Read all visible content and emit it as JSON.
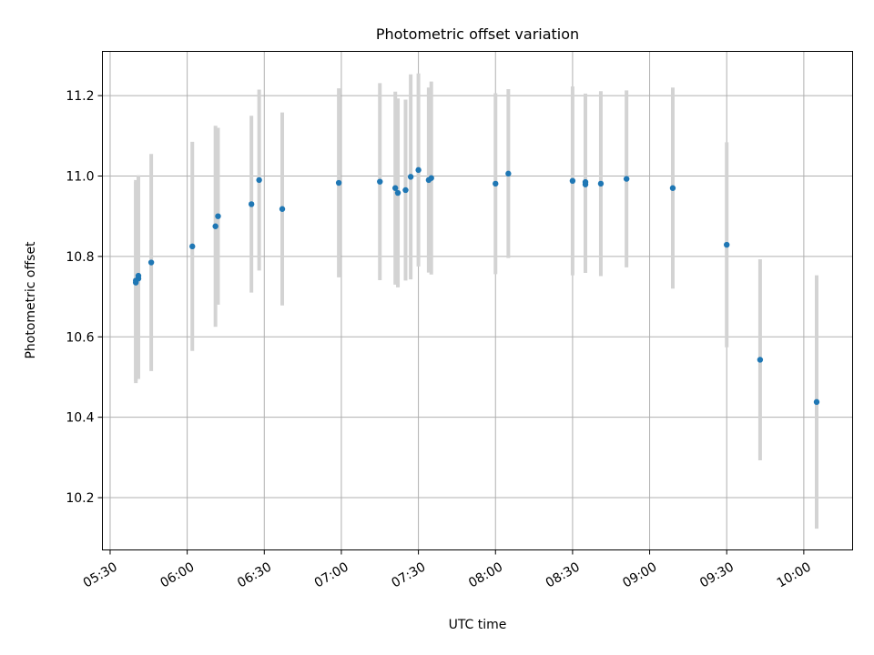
{
  "chart_data": {
    "type": "scatter",
    "title": "Photometric offset variation",
    "xlabel": "UTC time",
    "ylabel": "Photometric offset",
    "xlim": [
      "05:27",
      "10:19"
    ],
    "ylim": [
      10.07,
      11.31
    ],
    "x_ticks": [
      "05:30",
      "06:00",
      "06:30",
      "07:00",
      "07:30",
      "08:00",
      "08:30",
      "09:00",
      "09:30",
      "10:00"
    ],
    "y_ticks": [
      10.2,
      10.4,
      10.6,
      10.8,
      11.0,
      11.2
    ],
    "grid": true,
    "colors": {
      "point": "#1f77b4",
      "errorbar": "#d3d3d3",
      "grid": "#b0b0b0"
    },
    "series": [
      {
        "points": [
          {
            "x": "05:40",
            "y": 10.735,
            "err": 0.25
          },
          {
            "x": "05:40",
            "y": 10.74,
            "err": 0.25
          },
          {
            "x": "05:41",
            "y": 10.745,
            "err": 0.25
          },
          {
            "x": "05:41",
            "y": 10.752,
            "err": 0.25
          },
          {
            "x": "05:46",
            "y": 10.785,
            "err": 0.27
          },
          {
            "x": "06:02",
            "y": 10.825,
            "err": 0.26
          },
          {
            "x": "06:11",
            "y": 10.875,
            "err": 0.25
          },
          {
            "x": "06:12",
            "y": 10.9,
            "err": 0.22
          },
          {
            "x": "06:25",
            "y": 10.93,
            "err": 0.22
          },
          {
            "x": "06:28",
            "y": 10.99,
            "err": 0.225
          },
          {
            "x": "06:37",
            "y": 10.918,
            "err": 0.24
          },
          {
            "x": "06:59",
            "y": 10.983,
            "err": 0.235
          },
          {
            "x": "07:15",
            "y": 10.986,
            "err": 0.245
          },
          {
            "x": "07:21",
            "y": 10.97,
            "err": 0.24
          },
          {
            "x": "07:22",
            "y": 10.958,
            "err": 0.235
          },
          {
            "x": "07:25",
            "y": 10.965,
            "err": 0.225
          },
          {
            "x": "07:27",
            "y": 10.998,
            "err": 0.255
          },
          {
            "x": "07:30",
            "y": 11.015,
            "err": 0.24
          },
          {
            "x": "07:34",
            "y": 10.99,
            "err": 0.23
          },
          {
            "x": "07:35",
            "y": 10.995,
            "err": 0.24
          },
          {
            "x": "08:00",
            "y": 10.981,
            "err": 0.225
          },
          {
            "x": "08:05",
            "y": 11.006,
            "err": 0.21
          },
          {
            "x": "08:30",
            "y": 10.988,
            "err": 0.235
          },
          {
            "x": "08:35",
            "y": 10.979,
            "err": 0.22
          },
          {
            "x": "08:35",
            "y": 10.985,
            "err": 0.22
          },
          {
            "x": "08:41",
            "y": 10.981,
            "err": 0.23
          },
          {
            "x": "08:51",
            "y": 10.993,
            "err": 0.22
          },
          {
            "x": "09:09",
            "y": 10.97,
            "err": 0.25
          },
          {
            "x": "09:30",
            "y": 10.829,
            "err": 0.255
          },
          {
            "x": "09:43",
            "y": 10.543,
            "err": 0.25
          },
          {
            "x": "10:05",
            "y": 10.438,
            "err": 0.315
          }
        ]
      }
    ]
  }
}
